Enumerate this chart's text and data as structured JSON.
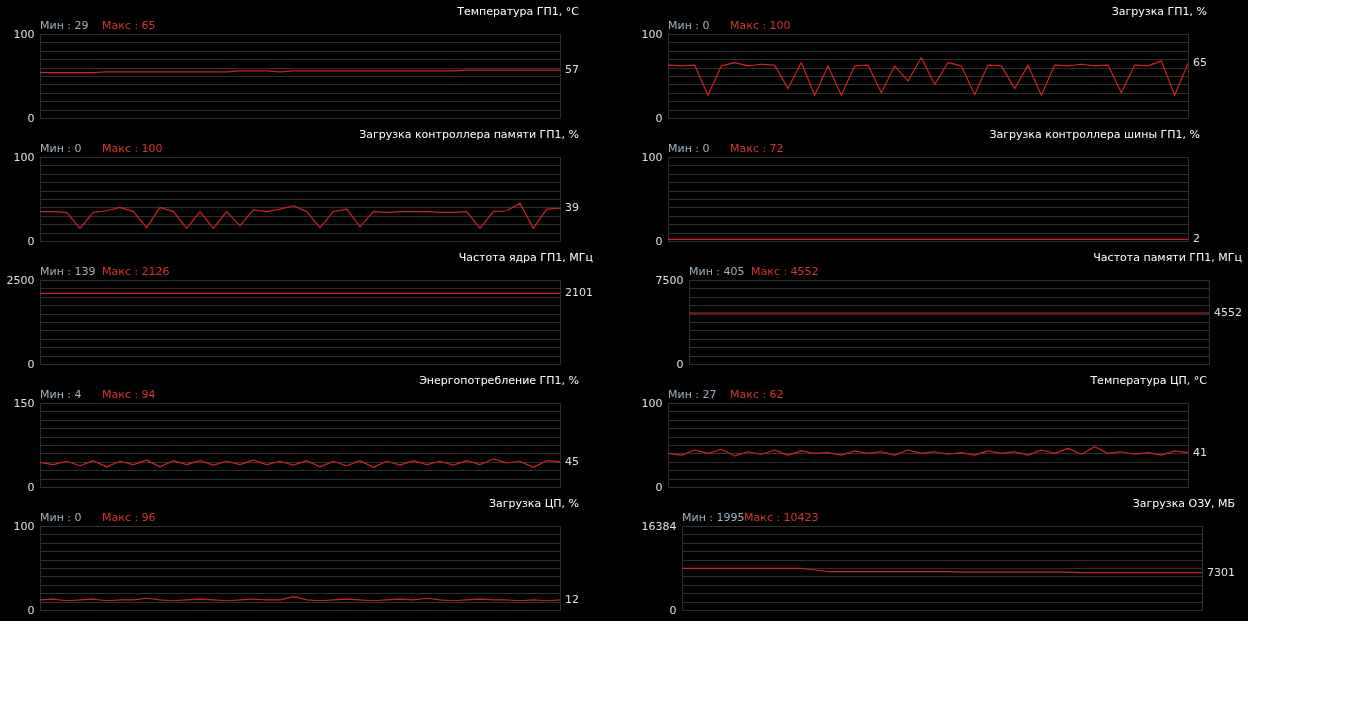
{
  "chart_data": [
    {
      "type": "line",
      "title": "Температура ГП1, °C",
      "categories": [
        null,
        null,
        null,
        null,
        null,
        null,
        null,
        null,
        null,
        null,
        null,
        null,
        null,
        null,
        null,
        null,
        null,
        null,
        null,
        null,
        null,
        null,
        null,
        null,
        null,
        null,
        null,
        null,
        null,
        null,
        null,
        null,
        null,
        null,
        null,
        null,
        null,
        null,
        null,
        null
      ],
      "series": [
        {
          "color": "#d42020",
          "values": [
            54,
            54,
            54,
            54,
            54,
            55,
            55,
            55,
            55,
            55,
            55,
            55,
            55,
            55,
            55,
            56,
            56,
            56,
            55,
            56,
            56,
            56,
            56,
            56,
            56,
            56,
            56,
            56,
            56,
            56,
            56,
            56,
            57,
            57,
            57,
            57,
            57,
            57,
            57,
            57
          ],
          "value_labels": [
            null,
            null,
            null,
            null,
            null,
            null,
            null,
            null,
            null,
            null,
            null,
            null,
            null,
            null,
            null,
            null,
            null,
            null,
            null,
            null,
            null,
            null,
            null,
            null,
            null,
            null,
            null,
            null,
            null,
            null,
            null,
            null,
            null,
            null,
            null,
            null,
            null,
            null,
            null,
            "57"
          ]
        }
      ],
      "ylim": [
        0,
        100
      ],
      "yticks": [
        0,
        {
          "value": 10,
          "label": null
        },
        {
          "value": 20,
          "label": null
        },
        {
          "value": 30,
          "label": null
        },
        {
          "value": 40,
          "label": null
        },
        {
          "value": 50,
          "label": null
        },
        {
          "value": 60,
          "label": null
        },
        {
          "value": 70,
          "label": null
        },
        {
          "value": 80,
          "label": null
        },
        {
          "value": 90,
          "label": null
        },
        100
      ],
      "grid": "y",
      "annotations": [
        "Мин : 29",
        "Макс : 65"
      ]
    },
    {
      "type": "line",
      "title": "Загрузка ГП1, %",
      "categories": [
        null,
        null,
        null,
        null,
        null,
        null,
        null,
        null,
        null,
        null,
        null,
        null,
        null,
        null,
        null,
        null,
        null,
        null,
        null,
        null,
        null,
        null,
        null,
        null,
        null,
        null,
        null,
        null,
        null,
        null,
        null,
        null,
        null,
        null,
        null,
        null,
        null,
        null,
        null,
        null
      ],
      "series": [
        {
          "color": "#d42020",
          "values": [
            63,
            62,
            63,
            27,
            62,
            66,
            62,
            64,
            63,
            35,
            66,
            27,
            62,
            27,
            62,
            63,
            30,
            62,
            44,
            72,
            40,
            66,
            62,
            28,
            63,
            62,
            35,
            63,
            27,
            63,
            62,
            64,
            62,
            63,
            30,
            63,
            62,
            68,
            27,
            65
          ],
          "value_labels": [
            null,
            null,
            null,
            null,
            null,
            null,
            null,
            null,
            null,
            null,
            null,
            null,
            null,
            null,
            null,
            null,
            null,
            null,
            null,
            null,
            null,
            null,
            null,
            null,
            null,
            null,
            null,
            null,
            null,
            null,
            null,
            null,
            null,
            null,
            null,
            null,
            null,
            null,
            null,
            "65"
          ]
        }
      ],
      "ylim": [
        0,
        100
      ],
      "yticks": [
        0,
        {
          "value": 10,
          "label": null
        },
        {
          "value": 20,
          "label": null
        },
        {
          "value": 30,
          "label": null
        },
        {
          "value": 40,
          "label": null
        },
        {
          "value": 50,
          "label": null
        },
        {
          "value": 60,
          "label": null
        },
        {
          "value": 70,
          "label": null
        },
        {
          "value": 80,
          "label": null
        },
        {
          "value": 90,
          "label": null
        },
        100
      ],
      "grid": "y",
      "annotations": [
        "Мин : 0",
        "Макс : 100"
      ]
    },
    {
      "type": "line",
      "title": "Загрузка контроллера памяти ГП1, %",
      "categories": [
        null,
        null,
        null,
        null,
        null,
        null,
        null,
        null,
        null,
        null,
        null,
        null,
        null,
        null,
        null,
        null,
        null,
        null,
        null,
        null,
        null,
        null,
        null,
        null,
        null,
        null,
        null,
        null,
        null,
        null,
        null,
        null,
        null,
        null,
        null,
        null,
        null,
        null,
        null,
        null
      ],
      "series": [
        {
          "color": "#d42020",
          "values": [
            35,
            35,
            34,
            15,
            34,
            36,
            40,
            35,
            16,
            40,
            35,
            15,
            35,
            15,
            35,
            18,
            37,
            35,
            38,
            42,
            35,
            16,
            35,
            38,
            17,
            35,
            34,
            35,
            35,
            35,
            34,
            34,
            35,
            15,
            35,
            36,
            45,
            15,
            38,
            39
          ],
          "value_labels": [
            null,
            null,
            null,
            null,
            null,
            null,
            null,
            null,
            null,
            null,
            null,
            null,
            null,
            null,
            null,
            null,
            null,
            null,
            null,
            null,
            null,
            null,
            null,
            null,
            null,
            null,
            null,
            null,
            null,
            null,
            null,
            null,
            null,
            null,
            null,
            null,
            null,
            null,
            null,
            "39"
          ]
        }
      ],
      "ylim": [
        0,
        100
      ],
      "yticks": [
        0,
        {
          "value": 10,
          "label": null
        },
        {
          "value": 20,
          "label": null
        },
        {
          "value": 30,
          "label": null
        },
        {
          "value": 40,
          "label": null
        },
        {
          "value": 50,
          "label": null
        },
        {
          "value": 60,
          "label": null
        },
        {
          "value": 70,
          "label": null
        },
        {
          "value": 80,
          "label": null
        },
        {
          "value": 90,
          "label": null
        },
        100
      ],
      "grid": "y",
      "annotations": [
        "Мин : 0",
        "Макс : 100"
      ]
    },
    {
      "type": "line",
      "title": "Загрузка контроллера шины ГП1, %",
      "categories": [
        null,
        null,
        null,
        null,
        null,
        null,
        null,
        null,
        null,
        null,
        null,
        null,
        null,
        null,
        null,
        null,
        null,
        null,
        null,
        null,
        null,
        null,
        null,
        null,
        null,
        null,
        null,
        null,
        null,
        null,
        null,
        null,
        null,
        null,
        null,
        null,
        null,
        null,
        null,
        null
      ],
      "series": [
        {
          "color": "#d42020",
          "values": [
            2,
            2,
            2,
            2,
            2,
            2,
            2,
            2,
            2,
            2,
            2,
            2,
            2,
            2,
            2,
            2,
            2,
            2,
            2,
            2,
            2,
            2,
            2,
            2,
            2,
            2,
            2,
            2,
            2,
            2,
            2,
            2,
            2,
            2,
            2,
            2,
            2,
            2,
            2,
            2
          ],
          "value_labels": [
            null,
            null,
            null,
            null,
            null,
            null,
            null,
            null,
            null,
            null,
            null,
            null,
            null,
            null,
            null,
            null,
            null,
            null,
            null,
            null,
            null,
            null,
            null,
            null,
            null,
            null,
            null,
            null,
            null,
            null,
            null,
            null,
            null,
            null,
            null,
            null,
            null,
            null,
            null,
            "2"
          ]
        }
      ],
      "ylim": [
        0,
        100
      ],
      "yticks": [
        0,
        {
          "value": 10,
          "label": null
        },
        {
          "value": 20,
          "label": null
        },
        {
          "value": 30,
          "label": null
        },
        {
          "value": 40,
          "label": null
        },
        {
          "value": 50,
          "label": null
        },
        {
          "value": 60,
          "label": null
        },
        {
          "value": 70,
          "label": null
        },
        {
          "value": 80,
          "label": null
        },
        {
          "value": 90,
          "label": null
        },
        100
      ],
      "grid": "y",
      "annotations": [
        "Мин : 0",
        "Макс : 72"
      ]
    },
    {
      "type": "line",
      "title": "Частота ядра ГП1, МГц",
      "categories": [
        null,
        null,
        null,
        null,
        null,
        null,
        null,
        null,
        null,
        null,
        null,
        null,
        null,
        null,
        null,
        null,
        null,
        null,
        null,
        null,
        null,
        null,
        null,
        null,
        null,
        null,
        null,
        null,
        null,
        null,
        null,
        null,
        null,
        null,
        null,
        null,
        null,
        null,
        null,
        null
      ],
      "series": [
        {
          "color": "#d42020",
          "values": [
            2101,
            2101,
            2101,
            2101,
            2101,
            2101,
            2101,
            2101,
            2101,
            2101,
            2101,
            2101,
            2101,
            2101,
            2101,
            2101,
            2101,
            2101,
            2101,
            2101,
            2101,
            2101,
            2101,
            2101,
            2101,
            2101,
            2101,
            2101,
            2101,
            2101,
            2101,
            2101,
            2101,
            2101,
            2101,
            2101,
            2101,
            2101,
            2101,
            2101
          ],
          "value_labels": [
            null,
            null,
            null,
            null,
            null,
            null,
            null,
            null,
            null,
            null,
            null,
            null,
            null,
            null,
            null,
            null,
            null,
            null,
            null,
            null,
            null,
            null,
            null,
            null,
            null,
            null,
            null,
            null,
            null,
            null,
            null,
            null,
            null,
            null,
            null,
            null,
            null,
            null,
            null,
            "2101"
          ]
        }
      ],
      "ylim": [
        0,
        2500
      ],
      "yticks": [
        0,
        {
          "value": 250,
          "label": null
        },
        {
          "value": 500,
          "label": null
        },
        {
          "value": 750,
          "label": null
        },
        {
          "value": 1000,
          "label": null
        },
        {
          "value": 1250,
          "label": null
        },
        {
          "value": 1500,
          "label": null
        },
        {
          "value": 1750,
          "label": null
        },
        {
          "value": 2000,
          "label": null
        },
        {
          "value": 2250,
          "label": null
        },
        2500
      ],
      "grid": "y",
      "annotations": [
        "Мин : 139",
        "Макс : 2126"
      ]
    },
    {
      "type": "line",
      "title": "Частота памяти ГП1, МГц",
      "categories": [
        null,
        null,
        null,
        null,
        null,
        null,
        null,
        null,
        null,
        null,
        null,
        null,
        null,
        null,
        null,
        null,
        null,
        null,
        null,
        null,
        null,
        null,
        null,
        null,
        null,
        null,
        null,
        null,
        null,
        null,
        null,
        null,
        null,
        null,
        null,
        null,
        null,
        null,
        null,
        null
      ],
      "series": [
        {
          "color": "#d42020",
          "values": [
            4552,
            4552,
            4552,
            4552,
            4552,
            4552,
            4552,
            4552,
            4552,
            4552,
            4552,
            4552,
            4552,
            4552,
            4552,
            4552,
            4552,
            4552,
            4552,
            4552,
            4552,
            4552,
            4552,
            4552,
            4552,
            4552,
            4552,
            4552,
            4552,
            4552,
            4552,
            4552,
            4552,
            4552,
            4552,
            4552,
            4552,
            4552,
            4552,
            4552
          ],
          "value_labels": [
            null,
            null,
            null,
            null,
            null,
            null,
            null,
            null,
            null,
            null,
            null,
            null,
            null,
            null,
            null,
            null,
            null,
            null,
            null,
            null,
            null,
            null,
            null,
            null,
            null,
            null,
            null,
            null,
            null,
            null,
            null,
            null,
            null,
            null,
            null,
            null,
            null,
            null,
            null,
            "4552"
          ]
        }
      ],
      "ylim": [
        0,
        7500
      ],
      "yticks": [
        0,
        {
          "value": 750,
          "label": null
        },
        {
          "value": 1500,
          "label": null
        },
        {
          "value": 2250,
          "label": null
        },
        {
          "value": 3000,
          "label": null
        },
        {
          "value": 3750,
          "label": null
        },
        {
          "value": 4500,
          "label": null
        },
        {
          "value": 5250,
          "label": null
        },
        {
          "value": 6000,
          "label": null
        },
        {
          "value": 6750,
          "label": null
        },
        7500
      ],
      "grid": "y",
      "annotations": [
        "Мин : 405",
        "Макс : 4552"
      ]
    },
    {
      "type": "line",
      "title": "Энергопотребление ГП1, %",
      "categories": [
        null,
        null,
        null,
        null,
        null,
        null,
        null,
        null,
        null,
        null,
        null,
        null,
        null,
        null,
        null,
        null,
        null,
        null,
        null,
        null,
        null,
        null,
        null,
        null,
        null,
        null,
        null,
        null,
        null,
        null,
        null,
        null,
        null,
        null,
        null,
        null,
        null,
        null,
        null,
        null
      ],
      "series": [
        {
          "color": "#d42020",
          "values": [
            44,
            40,
            46,
            38,
            47,
            36,
            46,
            40,
            48,
            36,
            47,
            40,
            47,
            39,
            46,
            40,
            48,
            40,
            46,
            39,
            47,
            36,
            46,
            38,
            47,
            35,
            46,
            39,
            47,
            40,
            46,
            39,
            47,
            40,
            50,
            43,
            46,
            35,
            47,
            45
          ],
          "value_labels": [
            null,
            null,
            null,
            null,
            null,
            null,
            null,
            null,
            null,
            null,
            null,
            null,
            null,
            null,
            null,
            null,
            null,
            null,
            null,
            null,
            null,
            null,
            null,
            null,
            null,
            null,
            null,
            null,
            null,
            null,
            null,
            null,
            null,
            null,
            null,
            null,
            null,
            null,
            null,
            "45"
          ]
        }
      ],
      "ylim": [
        0,
        150
      ],
      "yticks": [
        0,
        {
          "value": 15,
          "label": null
        },
        {
          "value": 30,
          "label": null
        },
        {
          "value": 45,
          "label": null
        },
        {
          "value": 60,
          "label": null
        },
        {
          "value": 75,
          "label": null
        },
        {
          "value": 90,
          "label": null
        },
        {
          "value": 105,
          "label": null
        },
        {
          "value": 120,
          "label": null
        },
        {
          "value": 135,
          "label": null
        },
        150
      ],
      "grid": "y",
      "annotations": [
        "Мин : 4",
        "Макс : 94"
      ]
    },
    {
      "type": "line",
      "title": "Температура ЦП, °C",
      "categories": [
        null,
        null,
        null,
        null,
        null,
        null,
        null,
        null,
        null,
        null,
        null,
        null,
        null,
        null,
        null,
        null,
        null,
        null,
        null,
        null,
        null,
        null,
        null,
        null,
        null,
        null,
        null,
        null,
        null,
        null,
        null,
        null,
        null,
        null,
        null,
        null,
        null,
        null,
        null,
        null
      ],
      "series": [
        {
          "color": "#d42020",
          "values": [
            40,
            38,
            44,
            40,
            45,
            37,
            42,
            39,
            44,
            38,
            43,
            40,
            41,
            38,
            43,
            40,
            42,
            38,
            44,
            40,
            42,
            39,
            41,
            38,
            43,
            40,
            42,
            38,
            44,
            40,
            46,
            39,
            48,
            40,
            42,
            39,
            41,
            38,
            43,
            41
          ],
          "value_labels": [
            null,
            null,
            null,
            null,
            null,
            null,
            null,
            null,
            null,
            null,
            null,
            null,
            null,
            null,
            null,
            null,
            null,
            null,
            null,
            null,
            null,
            null,
            null,
            null,
            null,
            null,
            null,
            null,
            null,
            null,
            null,
            null,
            null,
            null,
            null,
            null,
            null,
            null,
            null,
            "41"
          ]
        }
      ],
      "ylim": [
        0,
        100
      ],
      "yticks": [
        0,
        {
          "value": 10,
          "label": null
        },
        {
          "value": 20,
          "label": null
        },
        {
          "value": 30,
          "label": null
        },
        {
          "value": 40,
          "label": null
        },
        {
          "value": 50,
          "label": null
        },
        {
          "value": 60,
          "label": null
        },
        {
          "value": 70,
          "label": null
        },
        {
          "value": 80,
          "label": null
        },
        {
          "value": 90,
          "label": null
        },
        100
      ],
      "grid": "y",
      "annotations": [
        "Мин : 27",
        "Макс : 62"
      ]
    },
    {
      "type": "line",
      "title": "Загрузка ЦП, %",
      "categories": [
        null,
        null,
        null,
        null,
        null,
        null,
        null,
        null,
        null,
        null,
        null,
        null,
        null,
        null,
        null,
        null,
        null,
        null,
        null,
        null,
        null,
        null,
        null,
        null,
        null,
        null,
        null,
        null,
        null,
        null,
        null,
        null,
        null,
        null,
        null,
        null,
        null,
        null,
        null,
        null
      ],
      "series": [
        {
          "color": "#d42020",
          "values": [
            12,
            13,
            11,
            12,
            13,
            11,
            12,
            12,
            14,
            12,
            11,
            12,
            13,
            12,
            11,
            12,
            13,
            12,
            12,
            16,
            12,
            11,
            12,
            13,
            12,
            11,
            12,
            13,
            12,
            14,
            12,
            11,
            12,
            13,
            12,
            12,
            11,
            12,
            11,
            12
          ],
          "value_labels": [
            null,
            null,
            null,
            null,
            null,
            null,
            null,
            null,
            null,
            null,
            null,
            null,
            null,
            null,
            null,
            null,
            null,
            null,
            null,
            null,
            null,
            null,
            null,
            null,
            null,
            null,
            null,
            null,
            null,
            null,
            null,
            null,
            null,
            null,
            null,
            null,
            null,
            null,
            null,
            "12"
          ]
        }
      ],
      "ylim": [
        0,
        100
      ],
      "yticks": [
        0,
        {
          "value": 10,
          "label": null
        },
        {
          "value": 20,
          "label": null
        },
        {
          "value": 30,
          "label": null
        },
        {
          "value": 40,
          "label": null
        },
        {
          "value": 50,
          "label": null
        },
        {
          "value": 60,
          "label": null
        },
        {
          "value": 70,
          "label": null
        },
        {
          "value": 80,
          "label": null
        },
        {
          "value": 90,
          "label": null
        },
        100
      ],
      "grid": "y",
      "annotations": [
        "Мин : 0",
        "Макс : 96"
      ]
    },
    {
      "type": "line",
      "title": "Загрузка ОЗУ, МБ",
      "categories": [
        null,
        null,
        null,
        null,
        null,
        null,
        null,
        null,
        null,
        null,
        null,
        null,
        null,
        null,
        null,
        null,
        null,
        null,
        null,
        null,
        null,
        null,
        null,
        null,
        null,
        null,
        null,
        null,
        null,
        null,
        null,
        null,
        null,
        null,
        null,
        null,
        null,
        null,
        null,
        null
      ],
      "series": [
        {
          "color": "#d42020",
          "values": [
            8100,
            8100,
            8100,
            8100,
            8100,
            8100,
            8100,
            8100,
            8100,
            8100,
            7800,
            7500,
            7500,
            7500,
            7500,
            7500,
            7500,
            7500,
            7500,
            7500,
            7500,
            7400,
            7400,
            7400,
            7400,
            7400,
            7400,
            7400,
            7400,
            7400,
            7301,
            7301,
            7301,
            7301,
            7301,
            7301,
            7301,
            7301,
            7301,
            7301
          ],
          "value_labels": [
            null,
            null,
            null,
            null,
            null,
            null,
            null,
            null,
            null,
            null,
            null,
            null,
            null,
            null,
            null,
            null,
            null,
            null,
            null,
            null,
            null,
            null,
            null,
            null,
            null,
            null,
            null,
            null,
            null,
            null,
            null,
            null,
            null,
            null,
            null,
            null,
            null,
            null,
            null,
            "7301"
          ]
        }
      ],
      "ylim": [
        0,
        16384
      ],
      "yticks": [
        0,
        {
          "value": 1638.4,
          "label": null
        },
        {
          "value": 3276.8,
          "label": null
        },
        {
          "value": 4915.2,
          "label": null
        },
        {
          "value": 6553.6,
          "label": null
        },
        {
          "value": 8192,
          "label": null
        },
        {
          "value": 9830.4,
          "label": null
        },
        {
          "value": 11468.8,
          "label": null
        },
        {
          "value": 13107.2,
          "label": null
        },
        {
          "value": 14745.6,
          "label": null
        },
        16384
      ],
      "grid": "y",
      "annotations": [
        "Мин : 1995",
        "Макс : 10423"
      ]
    }
  ]
}
